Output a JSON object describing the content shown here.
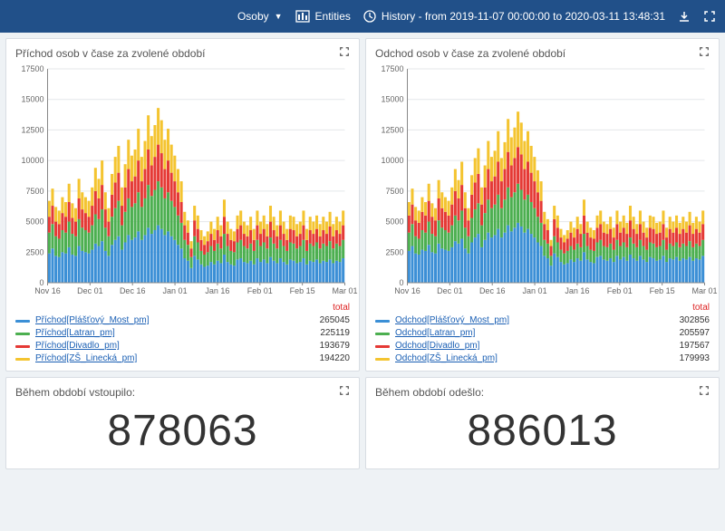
{
  "topbar": {
    "dropdown_label": "Osoby",
    "entities_label": "Entities",
    "history_label": "History - from 2019-11-07 00:00:00 to 2020-03-11 13:48:31"
  },
  "colors": {
    "series": [
      "#3b8fd6",
      "#4caf50",
      "#e53935",
      "#f4c430"
    ],
    "grid": "#e4e7ea",
    "axis": "#888",
    "total_header": "#d22"
  },
  "panels": {
    "prichod_chart": {
      "title": "Příchod osob v čase za zvolené období",
      "total_header": "total",
      "y": {
        "min": 0,
        "max": 17500,
        "ticks": [
          0,
          2500,
          5000,
          7500,
          10000,
          12500,
          15000,
          17500
        ]
      },
      "x_labels": [
        "Nov 16",
        "Dec 01",
        "Dec 16",
        "Jan 01",
        "Jan 16",
        "Feb 01",
        "Feb 15",
        "Mar 01"
      ],
      "series": [
        {
          "name": "Příchod[Plášťový_Most_pm]",
          "total": 265045
        },
        {
          "name": "Příchod[Latran_pm]",
          "total": 225119
        },
        {
          "name": "Příchod[Divadlo_pm]",
          "total": 193679
        },
        {
          "name": "Příchod[ZŠ_Linecká_pm]",
          "total": 194220
        }
      ],
      "stacks": [
        [
          2400,
          1700,
          1300,
          1300
        ],
        [
          2800,
          2000,
          1500,
          1400
        ],
        [
          2200,
          1600,
          1200,
          1200
        ],
        [
          2100,
          1500,
          1200,
          1100
        ],
        [
          2500,
          1800,
          1400,
          1300
        ],
        [
          2400,
          1700,
          1300,
          1200
        ],
        [
          2900,
          2100,
          1600,
          1500
        ],
        [
          2300,
          1700,
          1300,
          1200
        ],
        [
          2200,
          1600,
          1200,
          1100
        ],
        [
          3000,
          2200,
          1700,
          1600
        ],
        [
          2600,
          1900,
          1500,
          1400
        ],
        [
          2500,
          1800,
          1400,
          1300
        ],
        [
          2400,
          1700,
          1300,
          1300
        ],
        [
          2700,
          2000,
          1600,
          1500
        ],
        [
          3200,
          2400,
          1900,
          1900
        ],
        [
          3000,
          2200,
          1700,
          1600
        ],
        [
          3400,
          2600,
          2000,
          2000
        ],
        [
          2600,
          1900,
          1500,
          1400
        ],
        [
          2200,
          1600,
          1200,
          1100
        ],
        [
          3100,
          2300,
          1800,
          1700
        ],
        [
          3500,
          2600,
          2100,
          2100
        ],
        [
          3800,
          2900,
          2300,
          2200
        ],
        [
          2700,
          2000,
          1600,
          1500
        ],
        [
          3300,
          2500,
          2000,
          1900
        ],
        [
          3900,
          3000,
          2400,
          2400
        ],
        [
          3500,
          2700,
          2100,
          2100
        ],
        [
          3700,
          2800,
          2200,
          2200
        ],
        [
          4200,
          3200,
          2600,
          2600
        ],
        [
          3500,
          2700,
          2100,
          2000
        ],
        [
          3900,
          3000,
          2400,
          2300
        ],
        [
          4500,
          3500,
          2900,
          2800
        ],
        [
          4000,
          3100,
          2500,
          2400
        ],
        [
          4300,
          3300,
          2700,
          2600
        ],
        [
          4700,
          3600,
          3000,
          3000
        ],
        [
          4400,
          3400,
          2800,
          2700
        ],
        [
          3900,
          3000,
          2400,
          2400
        ],
        [
          4200,
          3200,
          2600,
          2600
        ],
        [
          3800,
          2900,
          2300,
          2300
        ],
        [
          3500,
          2700,
          2100,
          2100
        ],
        [
          3100,
          2400,
          1900,
          1900
        ],
        [
          2800,
          2100,
          1700,
          1700
        ],
        [
          2000,
          1500,
          1200,
          1100
        ],
        [
          1800,
          1300,
          1000,
          1000
        ],
        [
          1200,
          900,
          700,
          600
        ],
        [
          2200,
          1600,
          1300,
          1200
        ],
        [
          1900,
          1400,
          1100,
          1100
        ],
        [
          1500,
          1100,
          900,
          800
        ],
        [
          1300,
          1000,
          800,
          700
        ],
        [
          1400,
          1100,
          900,
          800
        ],
        [
          1700,
          1300,
          1000,
          1000
        ],
        [
          1500,
          1100,
          900,
          900
        ],
        [
          1800,
          1400,
          1100,
          1100
        ],
        [
          1600,
          1200,
          1000,
          900
        ],
        [
          2300,
          1700,
          1400,
          1400
        ],
        [
          1700,
          1300,
          1000,
          1000
        ],
        [
          1500,
          1100,
          900,
          900
        ],
        [
          1400,
          1100,
          900,
          800
        ],
        [
          1900,
          1400,
          1100,
          1100
        ],
        [
          2000,
          1500,
          1200,
          1200
        ],
        [
          1700,
          1300,
          1000,
          1000
        ],
        [
          1600,
          1200,
          1000,
          900
        ],
        [
          1800,
          1400,
          1100,
          1100
        ],
        [
          1500,
          1100,
          900,
          900
        ],
        [
          2000,
          1500,
          1200,
          1200
        ],
        [
          1700,
          1300,
          1000,
          1000
        ],
        [
          1900,
          1400,
          1100,
          1100
        ],
        [
          1600,
          1200,
          1000,
          1000
        ],
        [
          2100,
          1600,
          1300,
          1300
        ],
        [
          1800,
          1400,
          1100,
          1100
        ],
        [
          1600,
          1200,
          1000,
          900
        ],
        [
          2000,
          1500,
          1200,
          1200
        ],
        [
          1700,
          1300,
          1000,
          1000
        ],
        [
          1500,
          1100,
          900,
          900
        ],
        [
          1900,
          1400,
          1100,
          1100
        ],
        [
          1800,
          1400,
          1100,
          1100
        ],
        [
          1600,
          1200,
          1000,
          1000
        ],
        [
          1700,
          1300,
          1000,
          1000
        ],
        [
          2000,
          1500,
          1200,
          1200
        ],
        [
          1500,
          1100,
          900,
          900
        ],
        [
          1800,
          1400,
          1100,
          1100
        ],
        [
          1700,
          1300,
          1000,
          1000
        ],
        [
          1900,
          1400,
          1100,
          1100
        ],
        [
          1600,
          1200,
          1000,
          1000
        ],
        [
          1800,
          1400,
          1100,
          1100
        ],
        [
          1700,
          1300,
          1000,
          1000
        ],
        [
          1900,
          1500,
          1200,
          1200
        ],
        [
          1600,
          1200,
          1000,
          1000
        ],
        [
          1800,
          1400,
          1100,
          1100
        ],
        [
          1700,
          1300,
          1000,
          1000
        ],
        [
          2000,
          1500,
          1200,
          1200
        ]
      ]
    },
    "odchod_chart": {
      "title": "Odchod osob v čase za zvolené období",
      "total_header": "total",
      "y": {
        "min": 0,
        "max": 17500,
        "ticks": [
          0,
          2500,
          5000,
          7500,
          10000,
          12500,
          15000,
          17500
        ]
      },
      "x_labels": [
        "Nov 16",
        "Dec 01",
        "Dec 16",
        "Jan 01",
        "Jan 16",
        "Feb 01",
        "Feb 15",
        "Mar 01"
      ],
      "series": [
        {
          "name": "Odchod[Plášťový_Most_pm]",
          "total": 302856
        },
        {
          "name": "Odchod[Latran_pm]",
          "total": 205597
        },
        {
          "name": "Odchod[Divadlo_pm]",
          "total": 197567
        },
        {
          "name": "Odchod[ZŠ_Linecká_pm]",
          "total": 179993
        }
      ],
      "stacks": [
        [
          2600,
          1500,
          1400,
          1100
        ],
        [
          3000,
          1800,
          1600,
          1300
        ],
        [
          2400,
          1400,
          1300,
          1100
        ],
        [
          2300,
          1300,
          1300,
          1000
        ],
        [
          2700,
          1600,
          1500,
          1200
        ],
        [
          2600,
          1500,
          1400,
          1100
        ],
        [
          3100,
          1900,
          1700,
          1400
        ],
        [
          2500,
          1500,
          1400,
          1100
        ],
        [
          2400,
          1400,
          1300,
          1000
        ],
        [
          3200,
          1900,
          1800,
          1500
        ],
        [
          2800,
          1700,
          1600,
          1300
        ],
        [
          2700,
          1600,
          1500,
          1200
        ],
        [
          2600,
          1500,
          1400,
          1200
        ],
        [
          2900,
          1800,
          1700,
          1400
        ],
        [
          3400,
          2100,
          2000,
          1800
        ],
        [
          3200,
          1900,
          1800,
          1500
        ],
        [
          3600,
          2300,
          2100,
          1900
        ],
        [
          2800,
          1700,
          1600,
          1300
        ],
        [
          2400,
          1400,
          1300,
          1000
        ],
        [
          3300,
          2000,
          1900,
          1600
        ],
        [
          3700,
          2300,
          2200,
          2000
        ],
        [
          4000,
          2500,
          2400,
          2100
        ],
        [
          2900,
          1800,
          1700,
          1400
        ],
        [
          3500,
          2200,
          2100,
          1800
        ],
        [
          4100,
          2700,
          2500,
          2300
        ],
        [
          3700,
          2400,
          2200,
          2000
        ],
        [
          3900,
          2500,
          2300,
          2100
        ],
        [
          4400,
          2800,
          2700,
          2500
        ],
        [
          3700,
          2400,
          2200,
          1900
        ],
        [
          4100,
          2700,
          2500,
          2200
        ],
        [
          4700,
          3100,
          2900,
          2700
        ],
        [
          4200,
          2800,
          2600,
          2300
        ],
        [
          4500,
          2900,
          2800,
          2500
        ],
        [
          4900,
          3200,
          3000,
          2900
        ],
        [
          4600,
          3000,
          2900,
          2600
        ],
        [
          4100,
          2700,
          2500,
          2300
        ],
        [
          4400,
          2800,
          2700,
          2500
        ],
        [
          4000,
          2600,
          2400,
          2200
        ],
        [
          3700,
          2400,
          2200,
          2000
        ],
        [
          3300,
          2100,
          2000,
          1800
        ],
        [
          3000,
          1900,
          1800,
          1600
        ],
        [
          2200,
          1300,
          1300,
          1000
        ],
        [
          2000,
          1200,
          1100,
          900
        ],
        [
          1400,
          800,
          800,
          500
        ],
        [
          2400,
          1400,
          1400,
          1100
        ],
        [
          2100,
          1200,
          1200,
          1000
        ],
        [
          1700,
          1000,
          1000,
          700
        ],
        [
          1500,
          900,
          900,
          600
        ],
        [
          1600,
          1000,
          1000,
          700
        ],
        [
          1900,
          1100,
          1100,
          900
        ],
        [
          1700,
          1000,
          1000,
          800
        ],
        [
          2000,
          1200,
          1200,
          1000
        ],
        [
          1800,
          1100,
          1100,
          800
        ],
        [
          2500,
          1500,
          1500,
          1300
        ],
        [
          1900,
          1100,
          1100,
          900
        ],
        [
          1700,
          1000,
          1000,
          800
        ],
        [
          1600,
          1000,
          1000,
          700
        ],
        [
          2100,
          1200,
          1200,
          1000
        ],
        [
          2200,
          1300,
          1300,
          1100
        ],
        [
          1900,
          1100,
          1100,
          900
        ],
        [
          1800,
          1100,
          1100,
          800
        ],
        [
          2000,
          1200,
          1200,
          1000
        ],
        [
          1700,
          1000,
          1000,
          800
        ],
        [
          2200,
          1300,
          1300,
          1100
        ],
        [
          1900,
          1100,
          1100,
          900
        ],
        [
          2100,
          1200,
          1200,
          1000
        ],
        [
          1800,
          1100,
          1100,
          900
        ],
        [
          2300,
          1400,
          1400,
          1200
        ],
        [
          2000,
          1200,
          1200,
          1000
        ],
        [
          1800,
          1100,
          1100,
          800
        ],
        [
          2200,
          1300,
          1300,
          1100
        ],
        [
          1900,
          1100,
          1100,
          900
        ],
        [
          1700,
          1000,
          1000,
          800
        ],
        [
          2100,
          1200,
          1200,
          1000
        ],
        [
          2000,
          1200,
          1200,
          1000
        ],
        [
          1800,
          1100,
          1100,
          900
        ],
        [
          1900,
          1100,
          1100,
          900
        ],
        [
          2200,
          1300,
          1300,
          1100
        ],
        [
          1700,
          1000,
          1000,
          800
        ],
        [
          2000,
          1200,
          1200,
          1000
        ],
        [
          1900,
          1100,
          1100,
          900
        ],
        [
          2100,
          1200,
          1200,
          1000
        ],
        [
          1800,
          1100,
          1100,
          900
        ],
        [
          2000,
          1200,
          1200,
          1000
        ],
        [
          1900,
          1100,
          1100,
          900
        ],
        [
          2100,
          1300,
          1300,
          1100
        ],
        [
          1800,
          1100,
          1100,
          900
        ],
        [
          2000,
          1200,
          1200,
          1000
        ],
        [
          1900,
          1100,
          1100,
          900
        ],
        [
          2200,
          1300,
          1300,
          1100
        ]
      ]
    },
    "vstoupilo": {
      "title": "Během období vstoupilo:",
      "value": "878063"
    },
    "odeslo": {
      "title": "Během období odešlo:",
      "value": "886013"
    }
  }
}
